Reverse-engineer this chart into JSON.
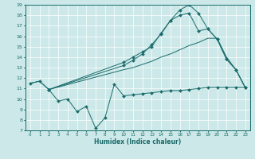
{
  "xlabel": "Humidex (Indice chaleur)",
  "xlim": [
    -0.5,
    23.5
  ],
  "ylim": [
    7,
    19
  ],
  "yticks": [
    7,
    8,
    9,
    10,
    11,
    12,
    13,
    14,
    15,
    16,
    17,
    18,
    19
  ],
  "xticks": [
    0,
    1,
    2,
    3,
    4,
    5,
    6,
    7,
    8,
    9,
    10,
    11,
    12,
    13,
    14,
    15,
    16,
    17,
    18,
    19,
    20,
    21,
    22,
    23
  ],
  "bg_color": "#cce8e8",
  "line_color": "#1a6b6b",
  "grid_color": "#b8d8d8",
  "line_zigzag_x": [
    0,
    1,
    2,
    3,
    4,
    5,
    6,
    7,
    8,
    9,
    10,
    11,
    12,
    13,
    14,
    15,
    16,
    17,
    18,
    19,
    20,
    21,
    22,
    23
  ],
  "line_zigzag_y": [
    11.5,
    11.7,
    10.9,
    9.8,
    10.0,
    8.8,
    9.3,
    7.2,
    8.2,
    11.4,
    10.3,
    10.4,
    10.5,
    10.6,
    10.7,
    10.8,
    10.8,
    10.9,
    11.0,
    11.1,
    11.1,
    11.1,
    11.1,
    11.1
  ],
  "line_lower_x": [
    0,
    1,
    2,
    10,
    11,
    12,
    13,
    14,
    15,
    16,
    17,
    18,
    19,
    20,
    21,
    22,
    23
  ],
  "line_lower_y": [
    11.5,
    11.7,
    10.9,
    12.8,
    13.0,
    13.3,
    13.6,
    14.0,
    14.3,
    14.7,
    15.1,
    15.4,
    15.8,
    15.8,
    14.0,
    12.8,
    11.1
  ],
  "line_mid_x": [
    2,
    10,
    11,
    12,
    13,
    14,
    15,
    16,
    17,
    18,
    19,
    20,
    21,
    22,
    23
  ],
  "line_mid_y": [
    10.9,
    13.5,
    14.0,
    14.5,
    15.0,
    16.3,
    17.5,
    18.0,
    18.2,
    16.5,
    16.7,
    15.7,
    13.8,
    12.8,
    11.1
  ],
  "line_top_x": [
    2,
    10,
    11,
    12,
    13,
    14,
    15,
    16,
    17,
    18,
    19,
    20,
    21,
    22,
    23
  ],
  "line_top_y": [
    10.9,
    13.2,
    13.7,
    14.3,
    15.2,
    16.2,
    17.5,
    18.5,
    19.0,
    18.2,
    16.7,
    15.7,
    13.8,
    12.8,
    11.1
  ]
}
